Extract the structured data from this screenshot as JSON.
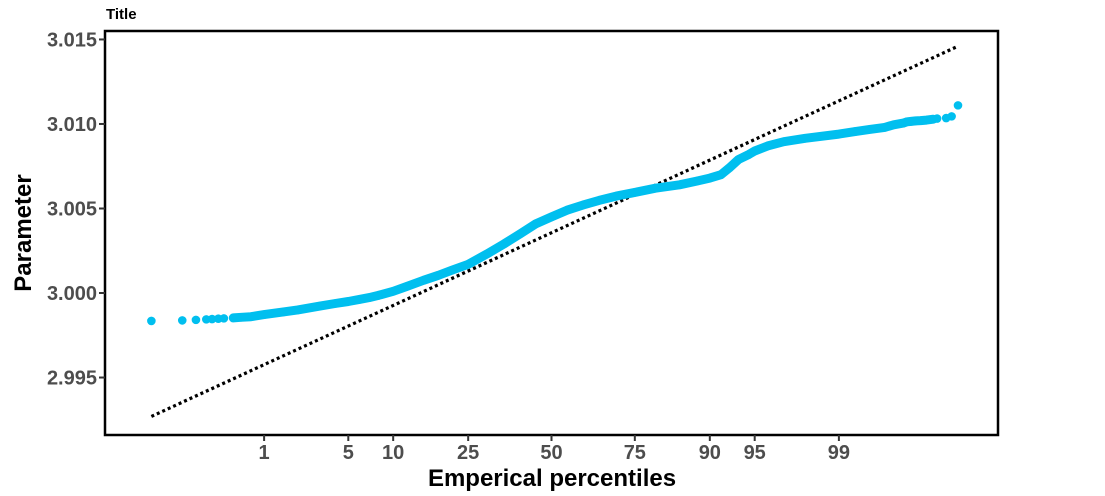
{
  "chart_data": {
    "type": "scatter",
    "title": "Title",
    "xlabel": "Emperical percentiles",
    "ylabel": "Parameter",
    "x_scale": "normal-probability",
    "x_ticks": [
      1,
      5,
      10,
      25,
      50,
      75,
      90,
      95,
      99
    ],
    "x_tick_labels": [
      "1",
      "5",
      "10",
      "25",
      "50",
      "75",
      "90",
      "95",
      "99"
    ],
    "xlim": [
      0.05,
      99.95
    ],
    "y_ticks": [
      2.995,
      3.0,
      3.005,
      3.01,
      3.015
    ],
    "y_tick_labels": [
      "2.995",
      "3.000",
      "3.005",
      "3.010",
      "3.015"
    ],
    "ylim": [
      2.9916,
      3.0155
    ],
    "grid": false,
    "legend": "none",
    "series": [
      {
        "kind": "points",
        "color": "#00bfef",
        "points": [
          [
            0.06,
            2.99835
          ],
          [
            0.14,
            2.99838
          ],
          [
            0.2,
            2.99841
          ],
          [
            0.26,
            2.99844
          ],
          [
            0.3,
            2.99846
          ],
          [
            0.35,
            2.99848
          ],
          [
            0.4,
            2.9985
          ],
          [
            0.5,
            2.99853
          ],
          [
            0.6,
            2.99856
          ],
          [
            0.75,
            2.9986
          ],
          [
            1.0,
            2.99872
          ],
          [
            1.5,
            2.99888
          ],
          [
            2,
            2.999
          ],
          [
            3,
            2.99922
          ],
          [
            4,
            2.99938
          ],
          [
            5,
            2.9995
          ],
          [
            6,
            2.99962
          ],
          [
            7,
            2.99973
          ],
          [
            8,
            2.99985
          ],
          [
            10,
            3.0001
          ],
          [
            12,
            3.00038
          ],
          [
            15,
            3.00075
          ],
          [
            18,
            3.00105
          ],
          [
            21,
            3.00135
          ],
          [
            25,
            3.0017
          ],
          [
            30,
            3.0023
          ],
          [
            35,
            3.0029
          ],
          [
            40,
            3.0035
          ],
          [
            45,
            3.0041
          ],
          [
            50,
            3.0045
          ],
          [
            55,
            3.0049
          ],
          [
            60,
            3.0052
          ],
          [
            65,
            3.00548
          ],
          [
            70,
            3.00573
          ],
          [
            75,
            3.00595
          ],
          [
            80,
            3.0062
          ],
          [
            85,
            3.0064
          ],
          [
            88,
            3.00662
          ],
          [
            90,
            3.0068
          ],
          [
            91.5,
            3.007
          ],
          [
            92.5,
            3.0074
          ],
          [
            93.5,
            3.0079
          ],
          [
            94.5,
            3.0082
          ],
          [
            95,
            3.0084
          ],
          [
            96,
            3.0087
          ],
          [
            97,
            3.00895
          ],
          [
            98,
            3.00915
          ],
          [
            99,
            3.0094
          ],
          [
            99.3,
            3.00955
          ],
          [
            99.5,
            3.00968
          ],
          [
            99.65,
            3.0098
          ],
          [
            99.72,
            3.00995
          ],
          [
            99.78,
            3.01005
          ],
          [
            99.8,
            3.01013
          ],
          [
            99.82,
            3.01015
          ],
          [
            99.84,
            3.01018
          ],
          [
            99.86,
            3.0102
          ],
          [
            99.88,
            3.01023
          ],
          [
            99.9,
            3.01028
          ],
          [
            99.91,
            3.01032
          ],
          [
            99.93,
            3.01035
          ],
          [
            99.94,
            3.01045
          ],
          [
            99.95,
            3.0111
          ]
        ]
      },
      {
        "kind": "reference-line",
        "color": "#000000",
        "dash": "dotted",
        "points": [
          [
            0.06,
            2.9927
          ],
          [
            99.95,
            3.0146
          ]
        ]
      }
    ]
  }
}
